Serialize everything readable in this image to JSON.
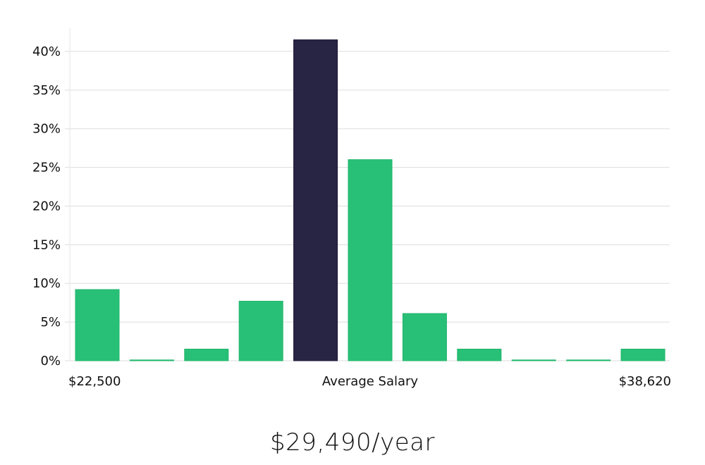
{
  "chart_data": {
    "type": "bar",
    "title": "",
    "xlabel": "",
    "ylabel": "",
    "ylim": [
      0,
      43
    ],
    "yticks": [
      0,
      5,
      10,
      15,
      20,
      25,
      30,
      35,
      40
    ],
    "ytick_labels": [
      "0%",
      "5%",
      "10%",
      "15%",
      "20%",
      "25%",
      "30%",
      "35%",
      "40%"
    ],
    "values": [
      9.2,
      0.1,
      1.5,
      7.7,
      41.5,
      26.0,
      6.1,
      1.5,
      0.1,
      0.1,
      1.5
    ],
    "highlight_index": 4,
    "x_labels": {
      "min": "$22,500",
      "center": "Average Salary",
      "max": "$38,620"
    },
    "grid": true
  },
  "colors": {
    "bar": "#28c076",
    "highlight": "#282444",
    "grid": "#dddddd",
    "axis": "#e6e6e6"
  },
  "summary": {
    "headline": "$29,490/year"
  }
}
